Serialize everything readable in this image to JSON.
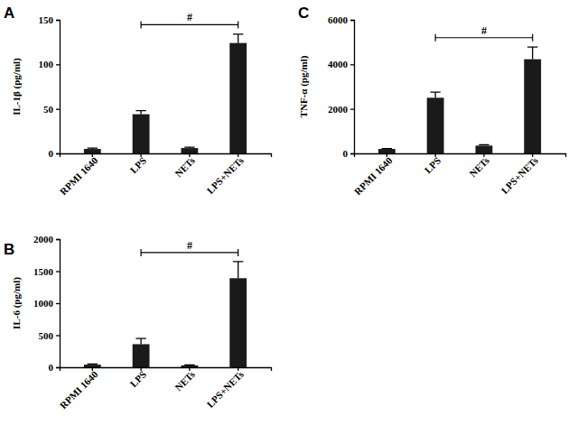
{
  "chart_data": [
    {
      "type": "bar",
      "title": "A",
      "y_label": "IL-1β (pg/ml)",
      "categories": [
        "RPMI 1640",
        "LPS",
        "NETs",
        "LPS+NETs"
      ],
      "values": [
        5,
        44,
        6,
        124
      ],
      "errors": [
        1,
        4,
        1,
        10
      ],
      "color": "#1a1a1a",
      "ylim": [
        0,
        150
      ],
      "yticks": [
        0,
        50,
        100,
        150
      ],
      "annotations": [
        {
          "text": "#",
          "from": "LPS",
          "to": "LPS+NETs"
        }
      ]
    },
    {
      "type": "bar",
      "title": "B",
      "y_label": "IL-6 (pg/ml)",
      "categories": [
        "RPMI 1640",
        "LPS",
        "NETs",
        "LPS+NETs"
      ],
      "values": [
        40,
        360,
        30,
        1390
      ],
      "errors": [
        10,
        90,
        8,
        260
      ],
      "color": "#1a1a1a",
      "ylim": [
        0,
        2000
      ],
      "yticks": [
        0,
        500,
        1000,
        1500,
        2000
      ],
      "annotations": [
        {
          "text": "#",
          "from": "LPS",
          "to": "LPS+NETs"
        }
      ]
    },
    {
      "type": "bar",
      "title": "C",
      "y_label": "TNF-α (pg/ml)",
      "categories": [
        "RPMI 1640",
        "LPS",
        "NETs",
        "LPS+NETs"
      ],
      "values": [
        200,
        2500,
        350,
        4230
      ],
      "errors": [
        20,
        250,
        40,
        550
      ],
      "color": "#1a1a1a",
      "ylim": [
        0,
        6000
      ],
      "yticks": [
        0,
        2000,
        4000,
        6000
      ],
      "annotations": [
        {
          "text": "#",
          "from": "LPS",
          "to": "LPS+NETs"
        }
      ]
    }
  ]
}
